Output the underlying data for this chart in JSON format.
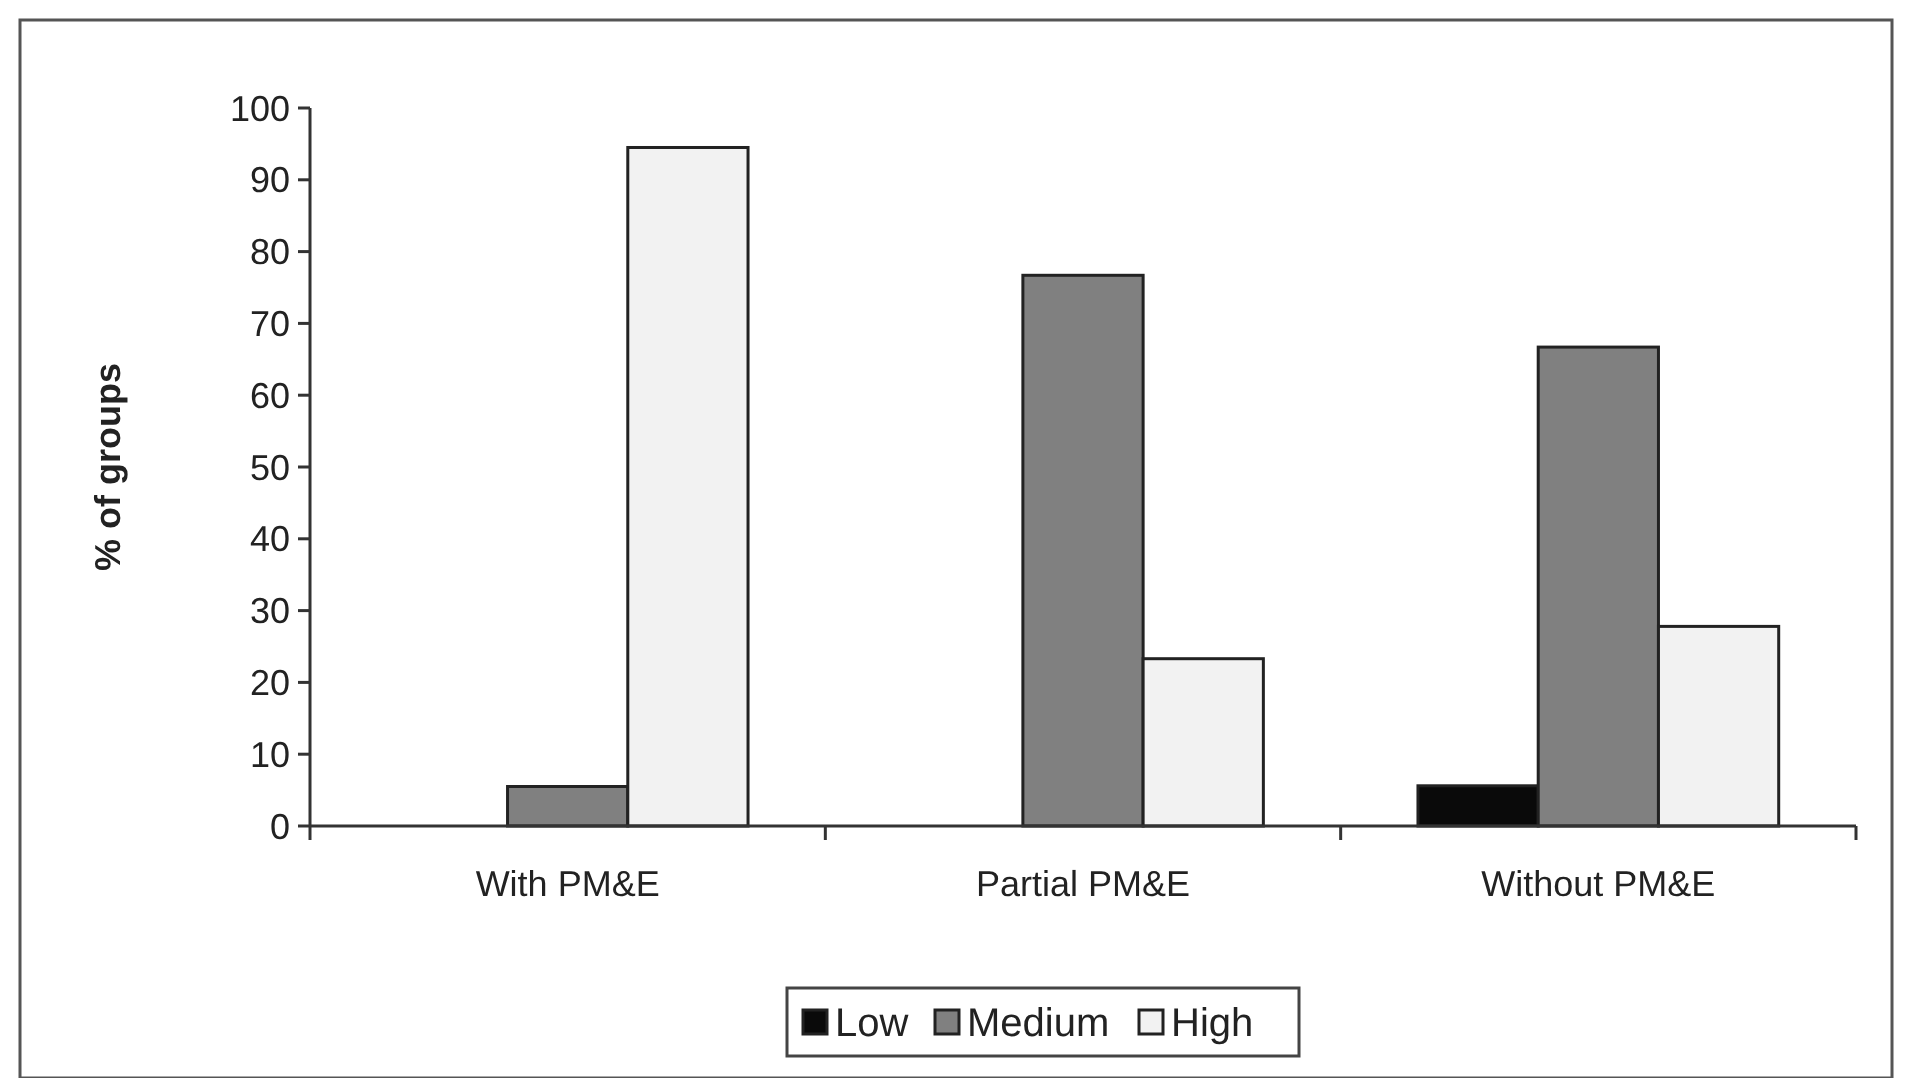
{
  "chart_data": {
    "type": "bar",
    "ylabel": "% of groups",
    "categories": [
      "With PM&E",
      "Partial PM&E",
      "Without PM&E"
    ],
    "series": [
      {
        "name": "Low",
        "color": "#0a0a0a",
        "values": [
          0,
          0,
          5.6
        ]
      },
      {
        "name": "Medium",
        "color": "#808080",
        "values": [
          5.5,
          76.7,
          66.7
        ]
      },
      {
        "name": "High",
        "color": "#f2f2f2",
        "values": [
          94.5,
          23.3,
          27.8
        ]
      }
    ],
    "ylim": [
      0,
      100
    ],
    "yticks": [
      0,
      10,
      20,
      30,
      40,
      50,
      60,
      70,
      80,
      90,
      100
    ],
    "grid": false,
    "legend": "bottom"
  }
}
